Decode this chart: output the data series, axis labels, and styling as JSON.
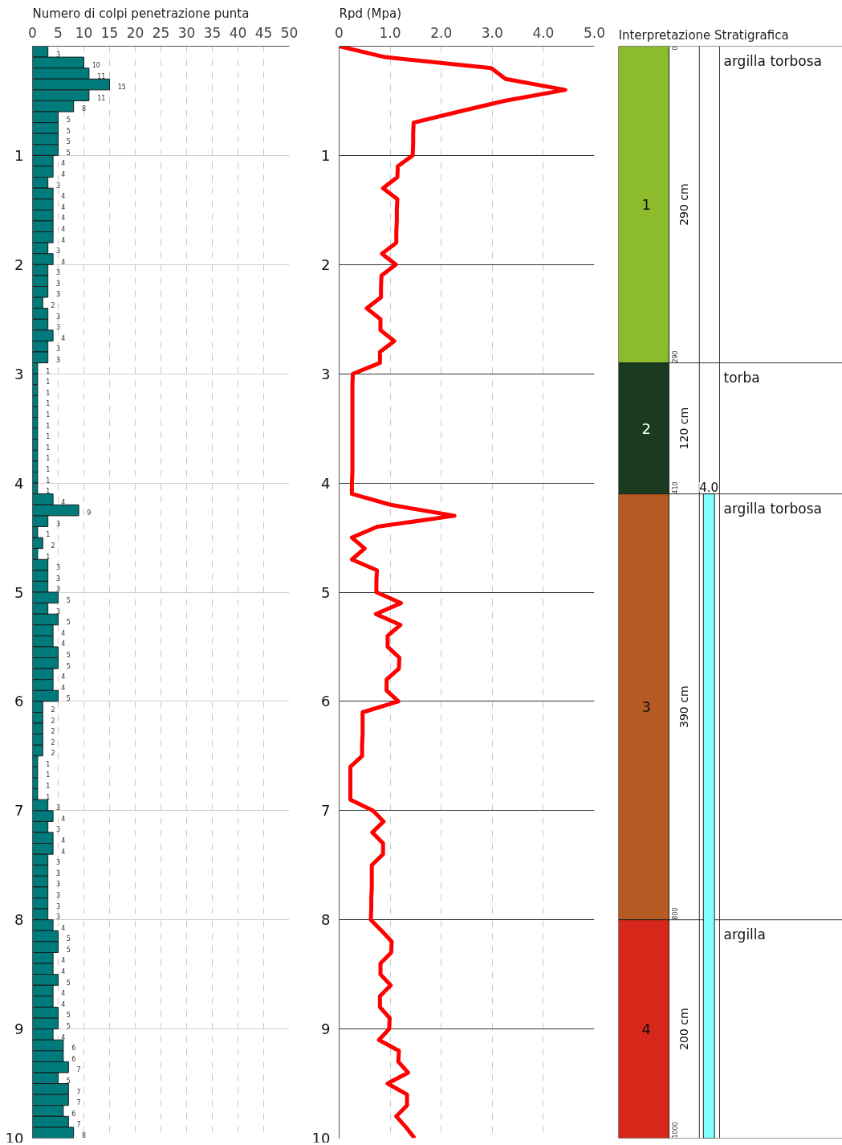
{
  "chart_data": [
    {
      "type": "histogram",
      "orientation": "horizontal",
      "title": "Numero di colpi penetrazione punta",
      "color": "#007b7b",
      "data_labels": true,
      "grid": true,
      "bins": [
        0,
        0.1,
        0.2,
        0.3,
        0.4,
        0.5,
        0.6,
        0.7,
        0.8,
        0.9,
        1,
        1.1,
        1.2,
        1.3,
        1.4,
        1.5,
        1.6,
        1.7,
        1.8,
        1.9,
        2,
        2.1,
        2.2,
        2.3,
        2.4,
        2.5,
        2.6,
        2.7,
        2.8,
        2.9,
        3,
        3.1,
        3.2,
        3.3,
        3.4,
        3.5,
        3.6,
        3.7,
        3.8,
        3.9,
        4,
        4.1,
        4.2,
        4.3,
        4.4,
        4.5,
        4.6,
        4.7,
        4.8,
        4.9,
        5,
        5.1,
        5.2,
        5.3,
        5.4,
        5.5,
        5.6,
        5.7,
        5.8,
        5.9,
        6,
        6.1,
        6.2,
        6.3,
        6.4,
        6.5,
        6.6,
        6.7,
        6.8,
        6.9,
        7,
        7.1,
        7.2,
        7.3,
        7.4,
        7.5,
        7.6,
        7.7,
        7.8,
        7.9,
        8,
        8.1,
        8.2,
        8.3,
        8.4,
        8.5,
        8.6,
        8.7,
        8.8,
        8.9,
        9,
        9.1,
        9.2,
        9.3,
        9.4,
        9.5,
        9.6,
        9.7,
        9.8,
        9.9,
        10
      ],
      "values": [
        3,
        10,
        11,
        15,
        11,
        8,
        5,
        5,
        5,
        5,
        4,
        4,
        3,
        4,
        4,
        4,
        4,
        4,
        3,
        4,
        3,
        3,
        3,
        2,
        3,
        3,
        4,
        3,
        3,
        1,
        1,
        1,
        1,
        1,
        1,
        1,
        1,
        1,
        1,
        1,
        1,
        4,
        9,
        3,
        1,
        2,
        1,
        3,
        3,
        3,
        5,
        3,
        5,
        4,
        4,
        5,
        5,
        4,
        4,
        5,
        2,
        2,
        2,
        2,
        2,
        1,
        1,
        1,
        1,
        3,
        4,
        3,
        4,
        4,
        3,
        3,
        3,
        3,
        3,
        3,
        4,
        5,
        5,
        4,
        4,
        5,
        4,
        4,
        5,
        5,
        4,
        6,
        6,
        7,
        5,
        7,
        7,
        6,
        7,
        8
      ],
      "xlim": [
        0,
        50
      ],
      "xticks": [
        0,
        5,
        10,
        15,
        20,
        25,
        30,
        35,
        40,
        45,
        50
      ],
      "ylim": [
        10,
        0
      ],
      "yticks": [
        1,
        2,
        3,
        4,
        5,
        6,
        7,
        8,
        9,
        10
      ]
    },
    {
      "type": "line",
      "orientation": "horizontal",
      "title": "Rpd (Mpa)",
      "grid": true,
      "line_style": "solid",
      "x": [
        0,
        0.1,
        0.2,
        0.3,
        0.4,
        0.5,
        0.6,
        0.7,
        0.8,
        0.9,
        1,
        1.1,
        1.2,
        1.3,
        1.4,
        1.5,
        1.6,
        1.7,
        1.8,
        1.9,
        2,
        2.1,
        2.2,
        2.3,
        2.4,
        2.5,
        2.6,
        2.7,
        2.8,
        2.9,
        3,
        3.1,
        3.2,
        3.3,
        3.4,
        3.5,
        3.6,
        3.7,
        3.8,
        3.9,
        4,
        4.1,
        4.2,
        4.3,
        4.4,
        4.5,
        4.6,
        4.7,
        4.8,
        4.9,
        5,
        5.1,
        5.2,
        5.3,
        5.4,
        5.5,
        5.6,
        5.7,
        5.8,
        5.9,
        6,
        6.1,
        6.2,
        6.3,
        6.4,
        6.5,
        6.6,
        6.7,
        6.8,
        6.9,
        7,
        7.1,
        7.2,
        7.3,
        7.4,
        7.5,
        7.6,
        7.7,
        7.8,
        7.9,
        8,
        8.1,
        8.2,
        8.3,
        8.4,
        8.5,
        8.6,
        8.7,
        8.8,
        8.9,
        9,
        9.1,
        9.2,
        9.3,
        9.4,
        9.5,
        9.6,
        9.7,
        9.8,
        9.9,
        10
      ],
      "series": [
        {
          "color": "#ff0000",
          "values": [
            0,
            0.9,
            2.98,
            3.26,
            4.43,
            3.24,
            2.34,
            1.46,
            1.45,
            1.45,
            1.44,
            1.15,
            1.14,
            0.86,
            1.14,
            1.13,
            1.13,
            1.12,
            1.12,
            0.84,
            1.11,
            0.83,
            0.82,
            0.82,
            0.54,
            0.81,
            0.81,
            1.08,
            0.8,
            0.8,
            0.27,
            0.26,
            0.26,
            0.26,
            0.26,
            0.26,
            0.26,
            0.26,
            0.26,
            0.26,
            0.25,
            0.25,
            1.01,
            2.26,
            0.75,
            0.25,
            0.5,
            0.25,
            0.74,
            0.73,
            0.73,
            1.21,
            0.72,
            1.2,
            0.95,
            0.95,
            1.18,
            1.17,
            0.93,
            0.93,
            1.16,
            0.46,
            0.46,
            0.46,
            0.45,
            0.45,
            0.22,
            0.22,
            0.22,
            0.22,
            0.66,
            0.87,
            0.65,
            0.86,
            0.86,
            0.64,
            0.64,
            0.64,
            0.63,
            0.63,
            0.62,
            0.83,
            1.03,
            1.02,
            0.81,
            0.81,
            1.01,
            0.8,
            0.8,
            0.99,
            0.98,
            0.78,
            1.17,
            1.16,
            1.35,
            0.95,
            1.33,
            1.33,
            1.12,
            1.31,
            1.48
          ]
        }
      ],
      "xlim": [
        0,
        5
      ],
      "xticks": [
        {
          "value": 0,
          "label": "0"
        },
        {
          "value": 1,
          "label": "1.0"
        },
        {
          "value": 2,
          "label": "2.0"
        },
        {
          "value": 3,
          "label": "3.0"
        },
        {
          "value": 4,
          "label": "4.0"
        },
        {
          "value": 5,
          "label": "5.0"
        }
      ],
      "ylim": [
        10,
        0
      ],
      "yticks": [
        1,
        2,
        3,
        4,
        5,
        6,
        7,
        8,
        9,
        10
      ]
    },
    {
      "type": "other",
      "title": "Interpretazione Stratigrafica",
      "categories": [
        "argilla torbosa",
        "torba",
        "argilla torbosa",
        "argilla"
      ],
      "values": [
        290,
        120,
        390,
        200
      ],
      "value_labels": [
        "290 cm",
        "120 cm",
        "390 cm",
        "200 cm"
      ],
      "colors": [
        "#8cbb2c",
        "#1a3b1f",
        "#b55a22",
        "#d7271a"
      ],
      "annotations": [
        "1",
        "2",
        "3",
        "4",
        "0",
        "290",
        "410",
        "800",
        "1000",
        "4.0"
      ]
    }
  ]
}
